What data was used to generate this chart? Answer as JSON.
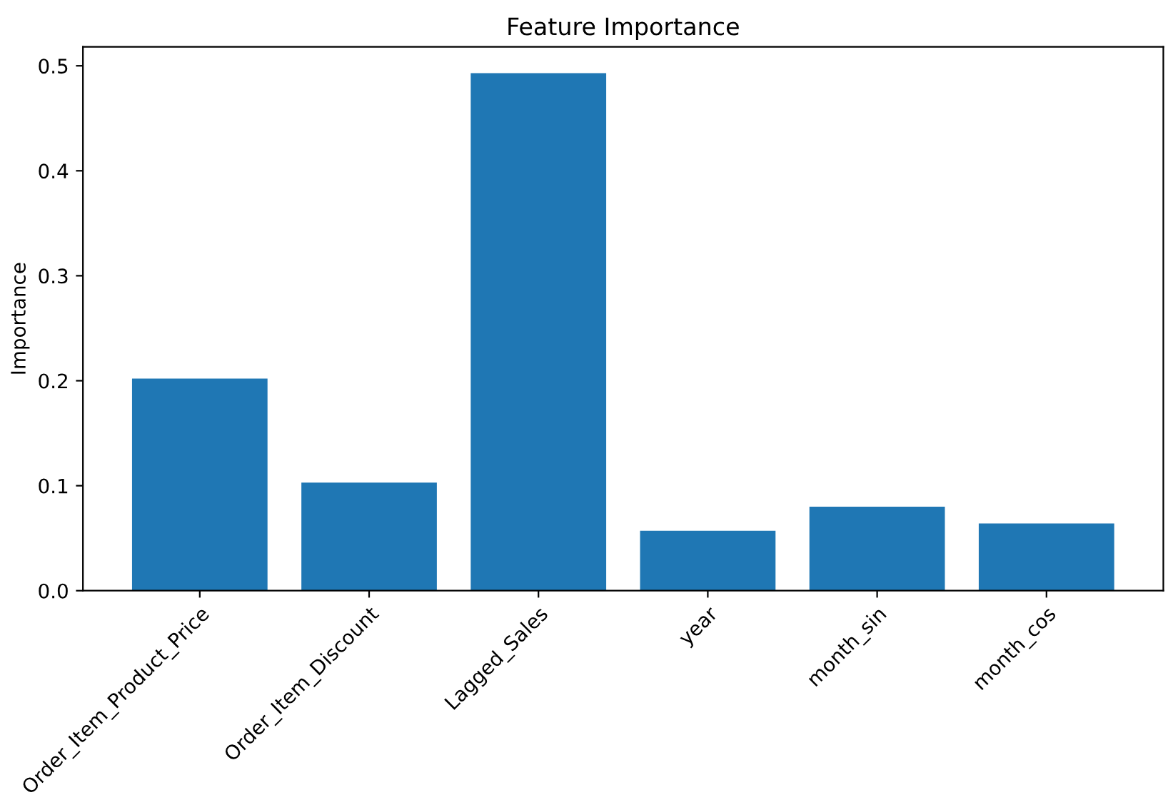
{
  "chart_data": {
    "type": "bar",
    "title": "Feature Importance",
    "ylabel": "Importance",
    "categories": [
      "Order_Item_Product_Price",
      "Order_Item_Discount",
      "Lagged_Sales",
      "year",
      "month_sin",
      "month_cos"
    ],
    "values": [
      0.202,
      0.103,
      0.493,
      0.057,
      0.08,
      0.064
    ],
    "color": "#1f77b4",
    "ylim": [
      0,
      0.518
    ],
    "yticks": [
      {
        "value": 0,
        "label": "0.0"
      },
      0.1,
      0.2,
      0.3,
      0.4,
      0.5
    ],
    "grid": false,
    "legend": false
  }
}
